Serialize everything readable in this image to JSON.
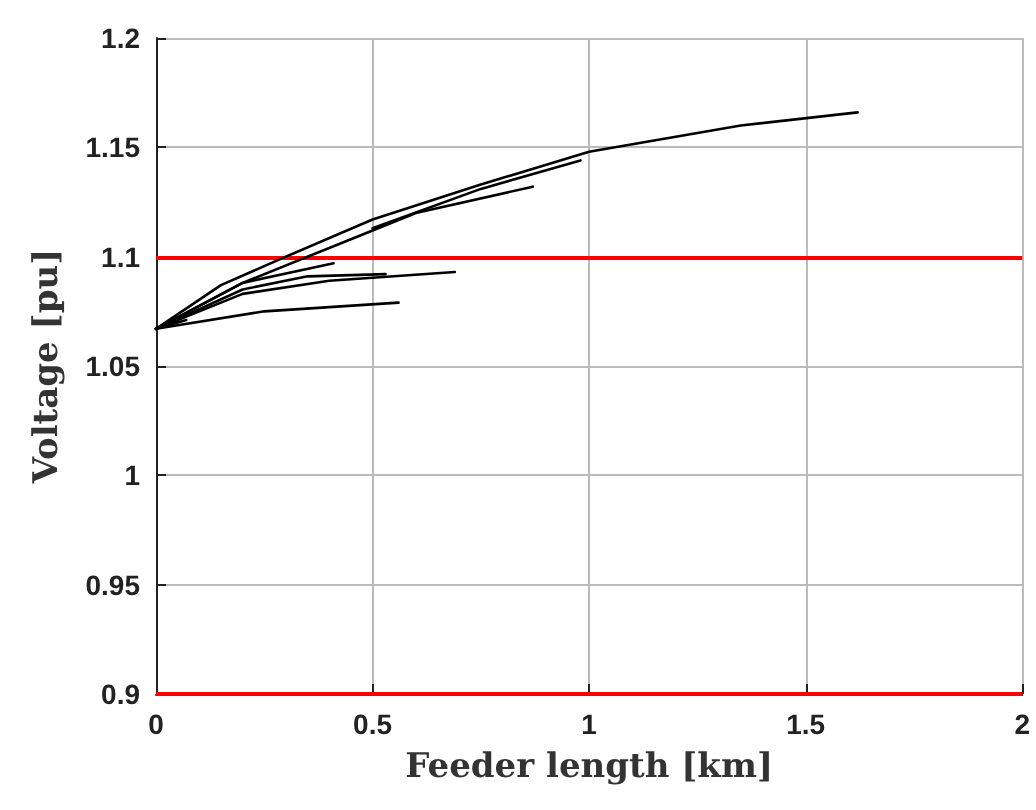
{
  "chart_data": {
    "type": "line",
    "xlabel": "Feeder length [km]",
    "ylabel": "Voltage [pu]",
    "xlim": [
      0,
      2
    ],
    "xticks": [
      0,
      0.5,
      1,
      1.5,
      2
    ],
    "ylim": [
      0.9,
      1.2
    ],
    "yticks": [
      0.9,
      0.95,
      1,
      1.05,
      1.1,
      1.15,
      1.2
    ],
    "grid": true,
    "marker": "none",
    "line_style": "solid",
    "series": [
      {
        "color": "#000000",
        "x": [
          0,
          0.15,
          0.3,
          0.5,
          0.75,
          1.0,
          1.35,
          1.62
        ],
        "values": [
          1.067,
          1.087,
          1.1,
          1.117,
          1.133,
          1.148,
          1.16,
          1.166
        ]
      },
      {
        "color": "#000000",
        "x": [
          0.5,
          0.75,
          0.98
        ],
        "values": [
          1.113,
          1.131,
          1.144
        ]
      },
      {
        "color": "#000000",
        "x": [
          0,
          0.2,
          0.4,
          0.6,
          0.87
        ],
        "values": [
          1.067,
          1.088,
          1.104,
          1.12,
          1.132
        ]
      },
      {
        "color": "#000000",
        "x": [
          0,
          0.2,
          0.4,
          0.69
        ],
        "values": [
          1.067,
          1.083,
          1.089,
          1.093
        ]
      },
      {
        "color": "#000000",
        "x": [
          0,
          0.2,
          0.35,
          0.53
        ],
        "values": [
          1.067,
          1.085,
          1.091,
          1.092
        ]
      },
      {
        "color": "#000000",
        "x": [
          0,
          0.2,
          0.41
        ],
        "values": [
          1.067,
          1.088,
          1.097
        ]
      },
      {
        "color": "#000000",
        "x": [
          0,
          0.25,
          0.56
        ],
        "values": [
          1.067,
          1.075,
          1.079
        ]
      },
      {
        "color": "#000000",
        "x": [
          0,
          0.07
        ],
        "values": [
          1.067,
          1.071
        ]
      }
    ],
    "ref_lines": [
      {
        "axis": "y",
        "value": 1.1,
        "color": "#ff0000"
      },
      {
        "axis": "y",
        "value": 0.9,
        "color": "#ff0000"
      }
    ]
  }
}
